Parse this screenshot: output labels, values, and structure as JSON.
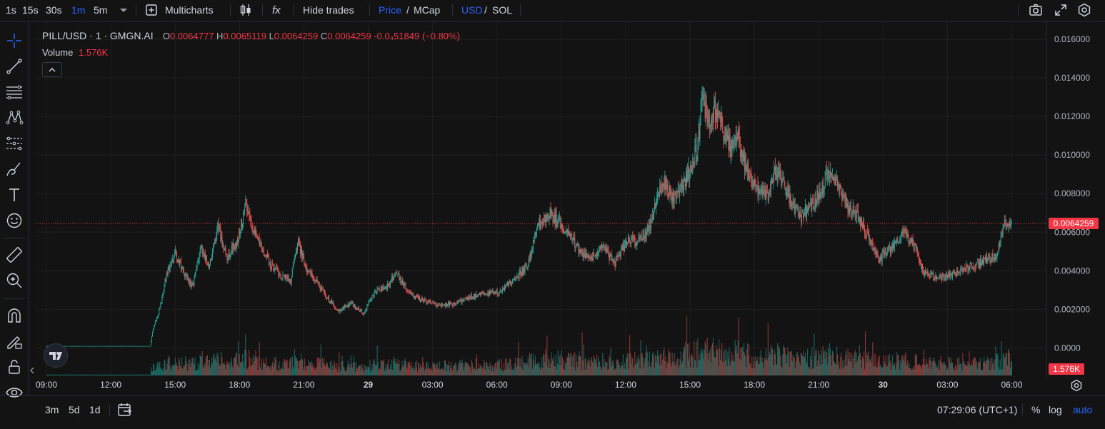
{
  "toolbar": {
    "intervals": [
      "1s",
      "15s",
      "30s",
      "1m",
      "5m"
    ],
    "active_interval": "1m",
    "multicharts_label": "Multicharts",
    "hide_trades_label": "Hide trades",
    "price_label": "Price",
    "mcap_label": "MCap",
    "usd_label": "USD",
    "sol_label": "SOL",
    "slash": "/",
    "fx_label": "fx"
  },
  "legend": {
    "symbol": "PILL/USD · 1 · GMGN.AI",
    "o_key": "O",
    "o_val": "0.0064777",
    "h_key": "H",
    "h_val": "0.0065119",
    "l_key": "L",
    "l_val": "0.0064259",
    "c_key": "C",
    "c_val": "0.0064259",
    "change": "-0.0₄51849 (−0.80%)",
    "volume_key": "Volume",
    "volume_val": "1.576K"
  },
  "price_tags": {
    "last_price": "0.0064259",
    "last_volume": "1.576K"
  },
  "bottombar": {
    "ranges": [
      "3m",
      "5d",
      "1d"
    ],
    "clock": "07:29:06 (UTC+1)",
    "percent": "%",
    "log": "log",
    "auto": "auto"
  },
  "colors": {
    "up": "#26a69a",
    "down": "#ef5350",
    "accent": "#2962ff",
    "price_tag": "#f23645",
    "background": "#131313",
    "grid": "#1f1f1f"
  },
  "chart_data": {
    "type": "candlestick",
    "symbol": "PILL/USD",
    "y_ticks": [
      "0.016000",
      "0.014000",
      "0.012000",
      "0.010000",
      "0.008000",
      "0.006000",
      "0.004000",
      "0.002000",
      "0.0000"
    ],
    "ylim": [
      -0.0014,
      0.0168
    ],
    "x_ticks": [
      "09:00",
      "12:00",
      "15:00",
      "18:00",
      "21:00",
      "29",
      "03:00",
      "06:00",
      "09:00",
      "12:00",
      "15:00",
      "18:00",
      "21:00",
      "30",
      "03:00",
      "06:00"
    ],
    "x_tick_bold": [
      false,
      false,
      false,
      false,
      false,
      true,
      false,
      false,
      false,
      false,
      false,
      false,
      false,
      true,
      false,
      false
    ],
    "price_path": [
      [
        0,
        0.0001
      ],
      [
        4.85,
        0.0001
      ],
      [
        4.95,
        0.0009
      ],
      [
        5.3,
        0.0021
      ],
      [
        5.6,
        0.0038
      ],
      [
        6.0,
        0.0049
      ],
      [
        6.4,
        0.004
      ],
      [
        6.8,
        0.0031
      ],
      [
        7.2,
        0.0052
      ],
      [
        7.6,
        0.0042
      ],
      [
        8.0,
        0.0063
      ],
      [
        8.4,
        0.0047
      ],
      [
        8.9,
        0.0055
      ],
      [
        9.3,
        0.0075
      ],
      [
        9.8,
        0.0057
      ],
      [
        10.4,
        0.0044
      ],
      [
        10.9,
        0.0037
      ],
      [
        11.4,
        0.0035
      ],
      [
        11.7,
        0.0055
      ],
      [
        12.1,
        0.0042
      ],
      [
        12.6,
        0.0034
      ],
      [
        13.1,
        0.0026
      ],
      [
        13.6,
        0.0019
      ],
      [
        14.2,
        0.0023
      ],
      [
        14.8,
        0.0018
      ],
      [
        15.3,
        0.0029
      ],
      [
        15.9,
        0.0032
      ],
      [
        16.3,
        0.0039
      ],
      [
        16.8,
        0.003
      ],
      [
        17.2,
        0.0026
      ],
      [
        17.8,
        0.0024
      ],
      [
        18.5,
        0.0022
      ],
      [
        19.1,
        0.0023
      ],
      [
        19.7,
        0.0026
      ],
      [
        20.4,
        0.0028
      ],
      [
        21.1,
        0.0029
      ],
      [
        21.8,
        0.0035
      ],
      [
        22.4,
        0.0042
      ],
      [
        22.9,
        0.0062
      ],
      [
        23.4,
        0.007
      ],
      [
        23.9,
        0.0065
      ],
      [
        24.4,
        0.0058
      ],
      [
        24.9,
        0.0049
      ],
      [
        25.4,
        0.0046
      ],
      [
        25.9,
        0.0052
      ],
      [
        26.5,
        0.0044
      ],
      [
        27.1,
        0.0056
      ],
      [
        27.6,
        0.0055
      ],
      [
        28.1,
        0.0063
      ],
      [
        28.5,
        0.0078
      ],
      [
        28.8,
        0.0086
      ],
      [
        29.2,
        0.0077
      ],
      [
        29.6,
        0.0082
      ],
      [
        30.0,
        0.0092
      ],
      [
        30.3,
        0.0102
      ],
      [
        30.6,
        0.0128
      ],
      [
        30.9,
        0.0118
      ],
      [
        31.2,
        0.0123
      ],
      [
        31.5,
        0.0115
      ],
      [
        31.9,
        0.0103
      ],
      [
        32.2,
        0.011
      ],
      [
        32.5,
        0.0097
      ],
      [
        32.8,
        0.0088
      ],
      [
        33.1,
        0.0083
      ],
      [
        33.6,
        0.0078
      ],
      [
        34.0,
        0.0092
      ],
      [
        34.4,
        0.0084
      ],
      [
        34.8,
        0.0073
      ],
      [
        35.2,
        0.0068
      ],
      [
        35.7,
        0.0075
      ],
      [
        36.1,
        0.008
      ],
      [
        36.4,
        0.0091
      ],
      [
        36.8,
        0.0087
      ],
      [
        37.3,
        0.0074
      ],
      [
        37.8,
        0.0068
      ],
      [
        38.3,
        0.0058
      ],
      [
        38.8,
        0.0046
      ],
      [
        39.4,
        0.0051
      ],
      [
        39.9,
        0.006
      ],
      [
        40.4,
        0.0054
      ],
      [
        40.9,
        0.0039
      ],
      [
        41.5,
        0.0036
      ],
      [
        42.1,
        0.0038
      ],
      [
        42.7,
        0.004
      ],
      [
        43.3,
        0.0043
      ],
      [
        43.9,
        0.0046
      ],
      [
        44.3,
        0.0048
      ],
      [
        44.7,
        0.0066
      ],
      [
        45.0,
        0.0064
      ]
    ],
    "volume_bars": 1320,
    "volume_range_k": [
      0,
      10
    ],
    "last_price": 0.0064259,
    "last_volume": "1.576K"
  }
}
